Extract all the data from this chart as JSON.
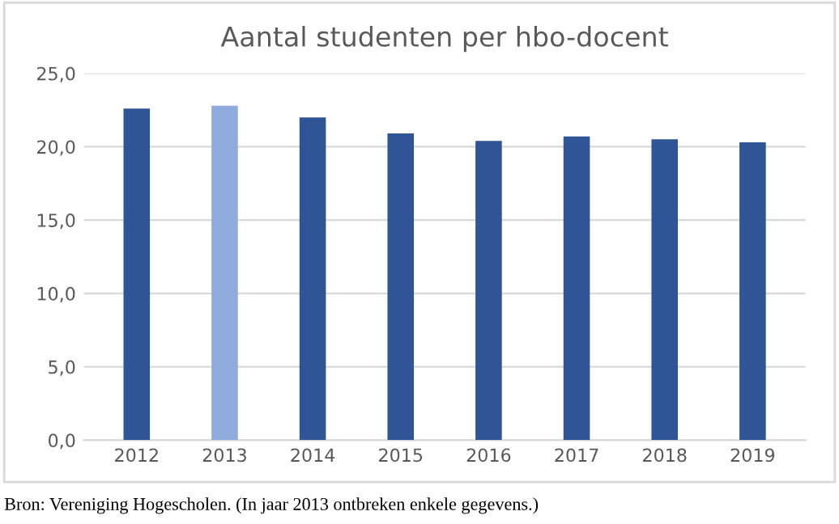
{
  "chart_data": {
    "type": "bar",
    "title": "Aantal studenten per hbo-docent",
    "categories": [
      "2012",
      "2013",
      "2014",
      "2015",
      "2016",
      "2017",
      "2018",
      "2019"
    ],
    "values": [
      22.6,
      22.8,
      22.0,
      20.9,
      20.4,
      20.7,
      20.5,
      20.3
    ],
    "colors": [
      "#2f5597",
      "#8faadc",
      "#2f5597",
      "#2f5597",
      "#2f5597",
      "#2f5597",
      "#2f5597",
      "#2f5597"
    ],
    "ylim": [
      0,
      25
    ],
    "yticks": [
      {
        "value": 0,
        "label": "0,0"
      },
      {
        "value": 5,
        "label": "5,0"
      },
      {
        "value": 10,
        "label": "10,0"
      },
      {
        "value": 15,
        "label": "15,0"
      },
      {
        "value": 20,
        "label": "20,0"
      },
      {
        "value": 25,
        "label": "25,0"
      }
    ],
    "grid": "y",
    "annotations": [
      "Bron: Vereniging Hogescholen. (In jaar 2013 ontbreken enkele gegevens.)"
    ]
  }
}
